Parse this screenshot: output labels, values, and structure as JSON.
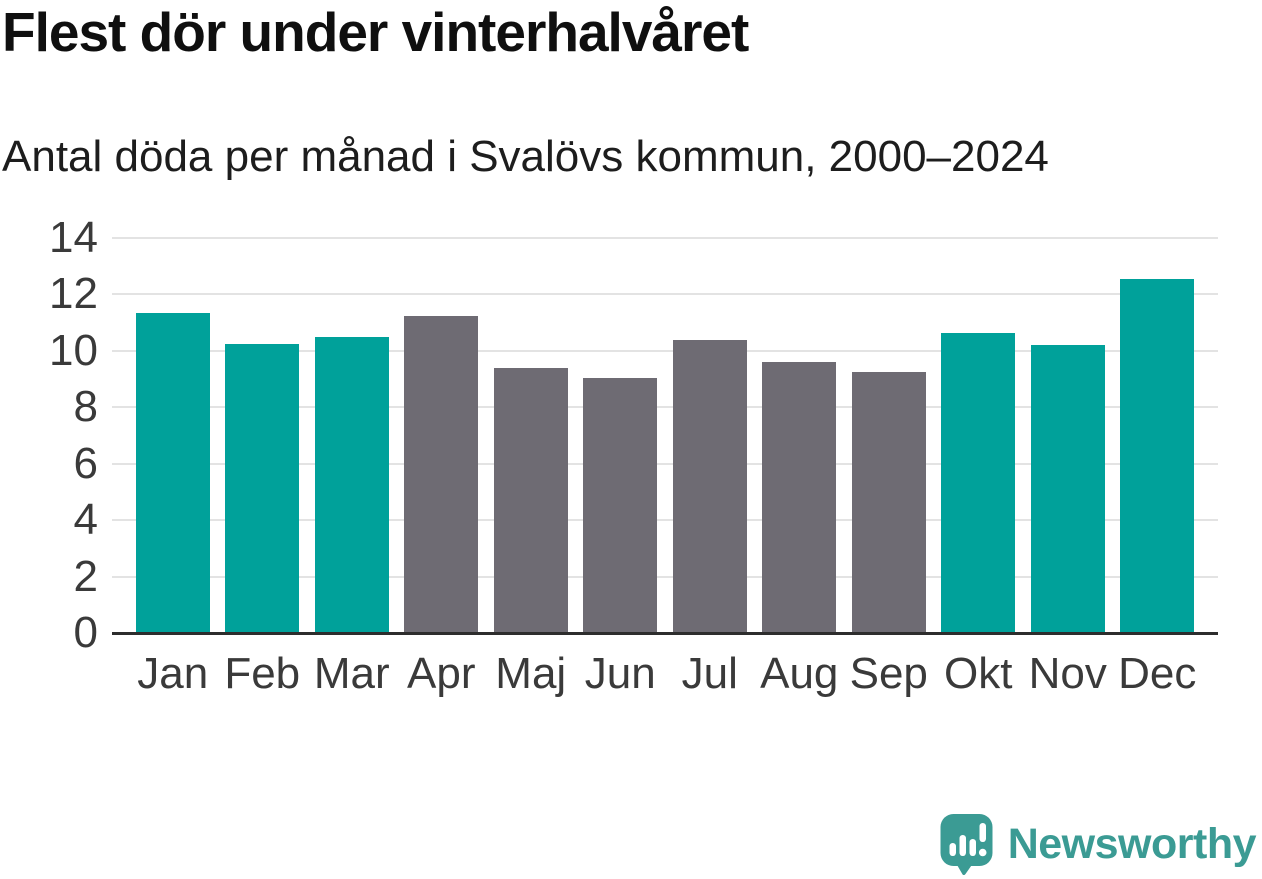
{
  "header": {
    "title": "Flest dör under vinterhalvåret",
    "subtitle": "Antal döda per månad i Svalövs kommun, 2000–2024"
  },
  "chart_data": {
    "type": "bar",
    "title": "Flest dör under vinterhalvåret",
    "subtitle": "Antal döda per månad i Svalövs kommun, 2000–2024",
    "categories": [
      "Jan",
      "Feb",
      "Mar",
      "Apr",
      "Maj",
      "Jun",
      "Jul",
      "Aug",
      "Sep",
      "Okt",
      "Nov",
      "Dec"
    ],
    "values": [
      11.35,
      10.25,
      10.5,
      11.25,
      9.4,
      9.05,
      10.4,
      9.6,
      9.25,
      10.65,
      10.2,
      12.55
    ],
    "xlabel": "",
    "ylabel": "",
    "ylim": [
      0,
      14
    ],
    "yticks": [
      0,
      2,
      4,
      6,
      8,
      10,
      12,
      14
    ],
    "grid": true,
    "legend": false,
    "bar_colors": [
      "#00A19A",
      "#00A19A",
      "#00A19A",
      "#6E6B73",
      "#6E6B73",
      "#6E6B73",
      "#6E6B73",
      "#6E6B73",
      "#6E6B73",
      "#00A19A",
      "#00A19A",
      "#00A19A"
    ],
    "colors": {
      "winter_highlight": "#00A19A",
      "summer_base": "#6E6B73",
      "gridline": "#E3E3E3",
      "axis_line": "#2D2D2D"
    }
  },
  "footer": {
    "brand": "Newsworthy",
    "brand_color": "#3B9B94",
    "logo_icon": "speech-bubble-bar-chart-icon"
  }
}
